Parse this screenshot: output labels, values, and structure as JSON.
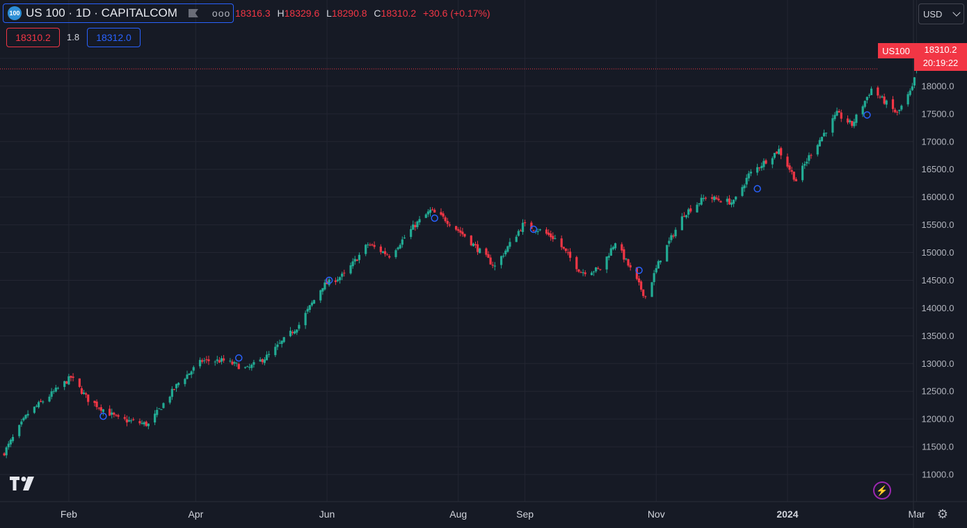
{
  "header": {
    "symbol_logo": "100",
    "symbol_title": "US 100 · 1D · CAPITALCOM",
    "flag_icon": "flag-icon",
    "menu_icon": "more-dots-icon",
    "ohlc": [
      {
        "k": "",
        "v": "18316.3"
      },
      {
        "k": "H",
        "v": "18329.6"
      },
      {
        "k": "L",
        "v": "18290.8"
      },
      {
        "k": "C",
        "v": "18310.2"
      },
      {
        "k": "",
        "v": "+30.6 (+0.17%)"
      }
    ]
  },
  "trade": {
    "sell": "18310.2",
    "spread": "1.8",
    "buy": "18312.0"
  },
  "currency": {
    "label": "USD"
  },
  "price_tag": {
    "symbol": "US100",
    "price": "18310.2",
    "countdown": "20:19:22"
  },
  "colors": {
    "up": "#22ab94",
    "down": "#f23645",
    "bg": "#161a25",
    "grid": "#232632",
    "marker": "#2962ff"
  },
  "chart_data": {
    "type": "candlestick",
    "title": "US 100 · 1D · CAPITALCOM",
    "y_axis": {
      "ticks": [
        "18500.0",
        "18000.0",
        "17500.0",
        "17000.0",
        "16500.0",
        "16000.0",
        "15500.0",
        "15000.0",
        "14500.0",
        "14000.0",
        "13500.0",
        "13000.0",
        "12500.0",
        "12000.0",
        "11500.0",
        "11000.0"
      ],
      "ylim": [
        10800,
        18650
      ]
    },
    "x_axis": {
      "ticks": [
        "Feb",
        "Apr",
        "Jun",
        "Aug",
        "Sep",
        "Nov",
        "2024",
        "Mar"
      ]
    },
    "anchors": [
      [
        "2023-01-02",
        11400
      ],
      [
        "2023-01-13",
        12100
      ],
      [
        "2023-01-27",
        12550
      ],
      [
        "2023-02-02",
        12750
      ],
      [
        "2023-02-10",
        12350
      ],
      [
        "2023-02-24",
        12000
      ],
      [
        "2023-03-10",
        11900
      ],
      [
        "2023-03-24",
        12650
      ],
      [
        "2023-04-04",
        13050
      ],
      [
        "2023-04-14",
        13050
      ],
      [
        "2023-04-25",
        12900
      ],
      [
        "2023-05-05",
        13150
      ],
      [
        "2023-05-19",
        13700
      ],
      [
        "2023-05-30",
        14400
      ],
      [
        "2023-06-09",
        14600
      ],
      [
        "2023-06-20",
        15150
      ],
      [
        "2023-06-30",
        14950
      ],
      [
        "2023-07-12",
        15500
      ],
      [
        "2023-07-19",
        15750
      ],
      [
        "2023-07-26",
        15600
      ],
      [
        "2023-08-04",
        15300
      ],
      [
        "2023-08-18",
        14750
      ],
      [
        "2023-08-31",
        15500
      ],
      [
        "2023-09-08",
        15400
      ],
      [
        "2023-09-15",
        15250
      ],
      [
        "2023-09-27",
        14650
      ],
      [
        "2023-10-06",
        14700
      ],
      [
        "2023-10-13",
        15200
      ],
      [
        "2023-10-20",
        14700
      ],
      [
        "2023-10-27",
        14200
      ],
      [
        "2023-11-03",
        14900
      ],
      [
        "2023-11-14",
        15700
      ],
      [
        "2023-11-24",
        16000
      ],
      [
        "2023-12-07",
        15900
      ],
      [
        "2023-12-14",
        16400
      ],
      [
        "2023-12-28",
        16850
      ],
      [
        "2024-01-05",
        16300
      ],
      [
        "2024-01-12",
        16800
      ],
      [
        "2024-01-24",
        17500
      ],
      [
        "2024-01-31",
        17300
      ],
      [
        "2024-02-09",
        17950
      ],
      [
        "2024-02-21",
        17500
      ],
      [
        "2024-02-28",
        17950
      ],
      [
        "2024-03-01",
        18310.2
      ]
    ],
    "markers": [
      {
        "date": "2023-02-17",
        "value": 12050
      },
      {
        "date": "2023-04-21",
        "value": 13100
      },
      {
        "date": "2023-06-02",
        "value": 14500
      },
      {
        "date": "2023-07-21",
        "value": 15620
      },
      {
        "date": "2023-09-05",
        "value": 15420
      },
      {
        "date": "2023-10-24",
        "value": 14680
      },
      {
        "date": "2023-12-18",
        "value": 16150
      },
      {
        "date": "2024-02-07",
        "value": 17480
      }
    ],
    "last": {
      "open": 18316.3,
      "high": 18329.6,
      "low": 18290.8,
      "close": 18310.2,
      "change": "+30.6 (+0.17%)"
    }
  }
}
